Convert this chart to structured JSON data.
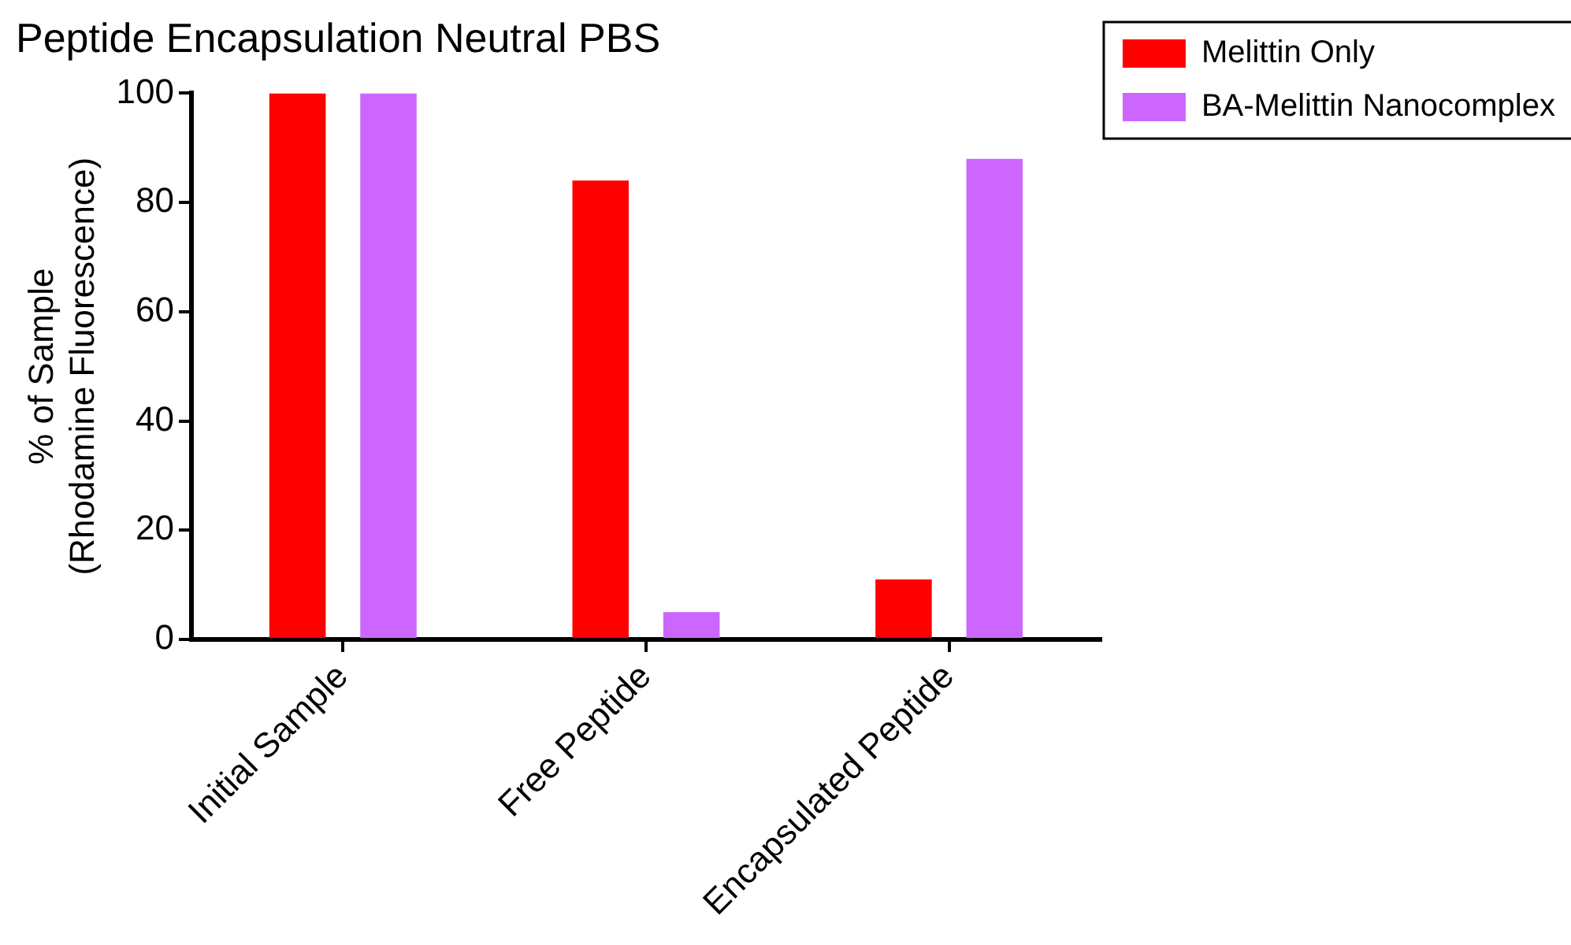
{
  "chart_data": {
    "type": "bar",
    "title": "Peptide Encapsulation Neutral PBS",
    "ylabel": "% of Sample\n(Rhodamine Fluorescence)",
    "categories": [
      "Initial Sample",
      "Free Peptide",
      "Encapsulated Peptide"
    ],
    "series": [
      {
        "name": "Melittin Only",
        "color": "#ff0000",
        "values": [
          100,
          84,
          11
        ]
      },
      {
        "name": "BA-Melittin Nanocomplex",
        "color": "#cc66ff",
        "values": [
          100,
          5,
          88
        ]
      }
    ],
    "ylim": [
      0,
      100
    ],
    "yticks": [
      0,
      20,
      40,
      60,
      80,
      100
    ],
    "grid": false,
    "legend": "top right"
  }
}
